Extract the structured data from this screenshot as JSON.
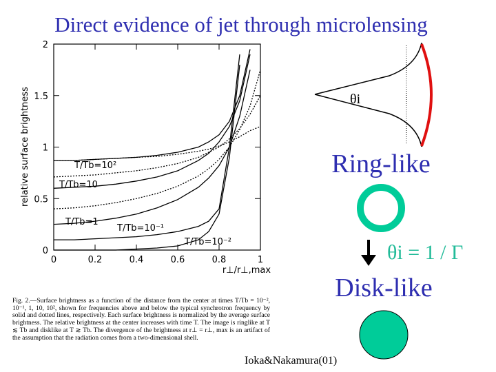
{
  "title": "Direct evidence of jet through microlensing",
  "chart_data": {
    "type": "line",
    "x_label": "r⊥/r⊥,max",
    "y_label": "relative surface brightness",
    "x": [
      0,
      0.1,
      0.2,
      0.3,
      0.4,
      0.5,
      0.6,
      0.7,
      0.75,
      0.8,
      0.85,
      0.9,
      0.95,
      1
    ],
    "xlim": [
      0,
      1
    ],
    "xticks": [
      0,
      0.2,
      0.4,
      0.6,
      0.8,
      1
    ],
    "ylim": [
      0,
      2
    ],
    "yticks": [
      0,
      0.5,
      1,
      1.5,
      2
    ],
    "series": [
      {
        "color": "#000000",
        "style": "solid",
        "values": [
          0.87,
          0.87,
          0.88,
          0.89,
          0.9,
          0.92,
          0.95,
          1.0,
          1.05,
          1.12,
          1.25,
          1.5,
          1.95,
          null
        ]
      },
      {
        "color": "#000000",
        "style": "dotted",
        "values": [
          0.87,
          0.87,
          0.88,
          0.89,
          0.9,
          0.91,
          0.93,
          0.96,
          0.98,
          1.01,
          1.05,
          1.1,
          1.16,
          1.2
        ]
      },
      {
        "color": "#000000",
        "style": "solid",
        "values": [
          0.6,
          0.61,
          0.62,
          0.64,
          0.67,
          0.71,
          0.77,
          0.87,
          0.94,
          1.05,
          1.2,
          1.45,
          1.9,
          null
        ]
      },
      {
        "color": "#000000",
        "style": "dotted",
        "values": [
          0.71,
          0.72,
          0.73,
          0.75,
          0.77,
          0.8,
          0.84,
          0.9,
          0.95,
          1.0,
          1.08,
          1.18,
          1.32,
          1.5
        ]
      },
      {
        "color": "#000000",
        "style": "solid",
        "values": [
          0.25,
          0.26,
          0.28,
          0.31,
          0.35,
          0.41,
          0.49,
          0.61,
          0.7,
          0.82,
          1.0,
          1.3,
          1.75,
          null
        ]
      },
      {
        "color": "#000000",
        "style": "dotted",
        "values": [
          0.4,
          0.41,
          0.43,
          0.46,
          0.5,
          0.55,
          0.62,
          0.72,
          0.79,
          0.88,
          1.0,
          1.17,
          1.4,
          1.75
        ]
      },
      {
        "color": "#000000",
        "style": "solid",
        "values": [
          0.1,
          0.1,
          0.11,
          0.12,
          0.13,
          0.15,
          0.18,
          0.23,
          0.28,
          0.4,
          1.0,
          1.9,
          null,
          null
        ]
      },
      {
        "color": "#000000",
        "style": "solid",
        "values": [
          0,
          0,
          0,
          0,
          0.01,
          0.02,
          0.04,
          0.1,
          0.18,
          0.35,
          0.9,
          1.8,
          null,
          null
        ]
      }
    ],
    "annotations": [
      "T/Tb=10²",
      "T/Tb=10",
      "T/Tb=1",
      "T/Tb=10⁻¹",
      "T/Tb=10⁻²"
    ]
  },
  "caption": "Fig. 2.—Surface brightness as a function of the distance from the center at times T/Tb = 10⁻², 10⁻¹, 1, 10, 10², shown for frequencies above and below the typical synchrotron frequency by solid and dotted lines, respectively. Each surface brightness is normalized by the average surface brightness. The relative brightness at the center increases with time T. The image is ringlike at T ≲ Tb and disklike at T ≳ Tb. The divergence of the brightness at r⊥ = r⊥, max is an artifact of the assumption that the radiation comes from a two-dimensional shell.",
  "diagram": {
    "angle_label": "θi",
    "ring_label": "Ring-like",
    "condition": "θi = 1 / Γ",
    "disk_label": "Disk-like"
  },
  "credit": "Ioka&Nakamura(01)"
}
